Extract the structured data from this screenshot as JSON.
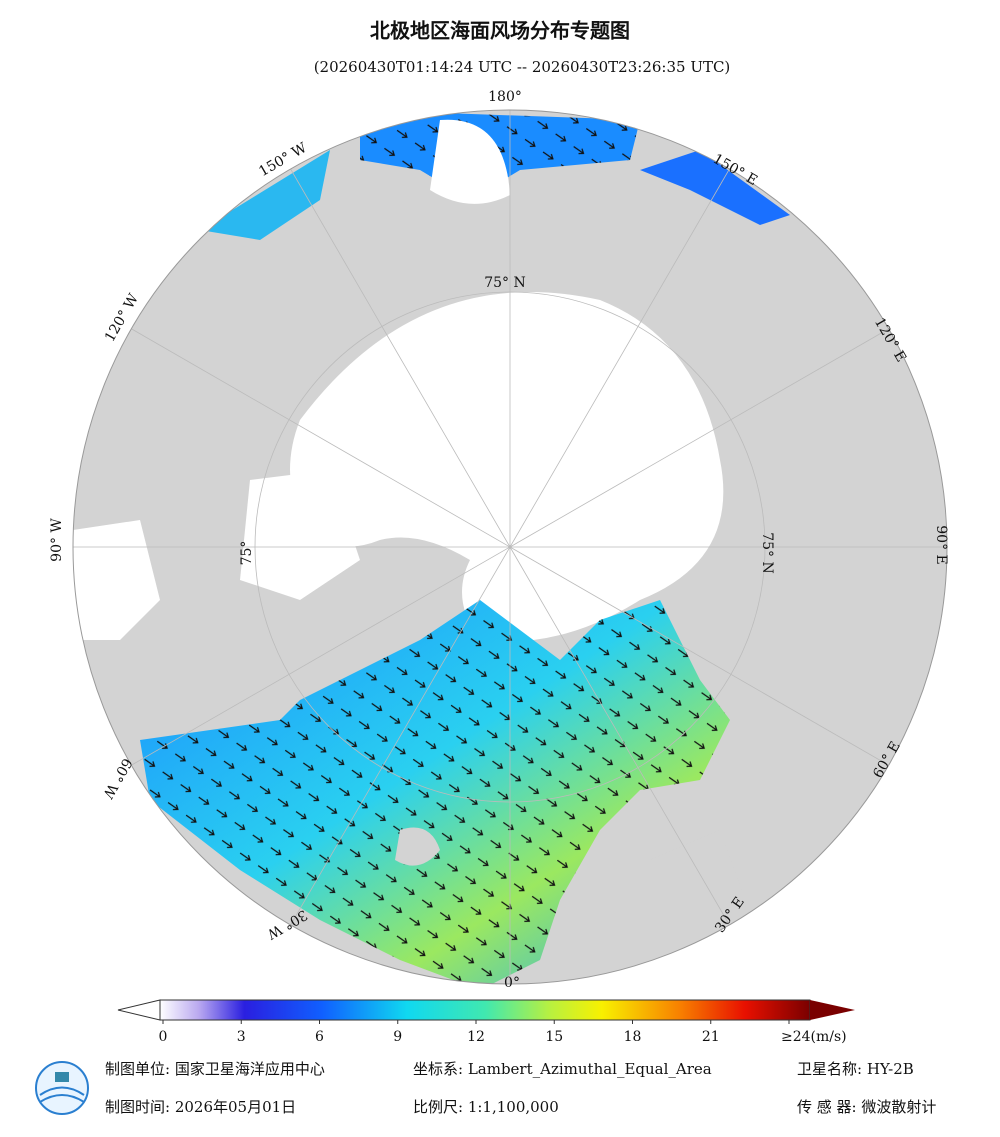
{
  "header": {
    "title": "北极地区海面风场分布专题图",
    "subtitle": "(20260430T01:14:24 UTC -- 20260430T23:26:35 UTC)"
  },
  "map": {
    "longitude_labels": [
      "180°",
      "150° W",
      "120° W",
      "90° W",
      "60° W",
      "30° W",
      "0°",
      "30° E",
      "60° E",
      "90° E",
      "120° E",
      "150° E"
    ],
    "latitude_labels": [
      "75° N",
      "75° N",
      "75°"
    ]
  },
  "colorbar": {
    "range": [
      0,
      24
    ],
    "ticks": [
      0,
      3,
      6,
      9,
      12,
      15,
      18,
      21,
      {
        "value": 24,
        "label": "≥24(m/s)"
      }
    ]
  },
  "footer": {
    "unit": "制图单位: 国家卫星海洋应用中心",
    "time": "制图时间: 2026年05月01日",
    "crs": "坐标系: Lambert_Azimuthal_Equal_Area",
    "scale": "比例尺: 1:1,100,000",
    "satellite": "卫星名称: HY-2B",
    "sensor": "传 感 器: 微波散射计"
  }
}
